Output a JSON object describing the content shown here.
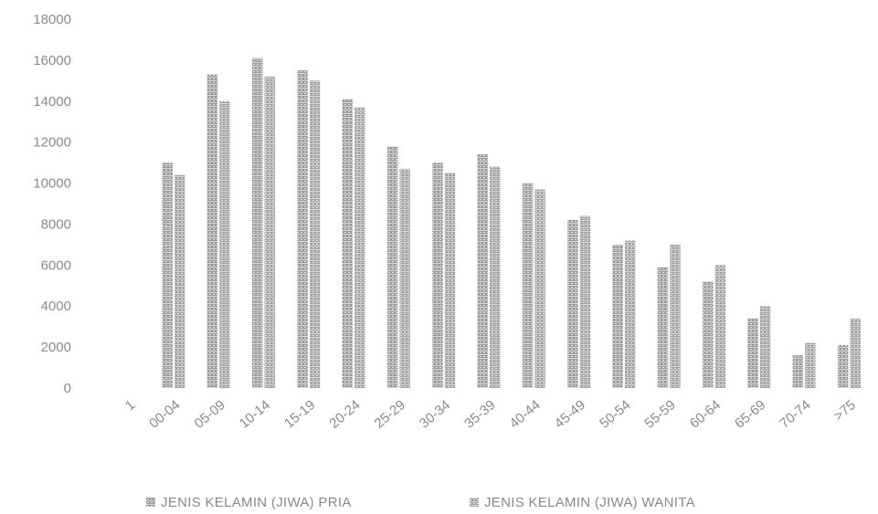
{
  "chart_data": {
    "type": "bar",
    "categories": [
      "1",
      "00-04",
      "05-09",
      "10-14",
      "15-19",
      "20-24",
      "25-29",
      "30-34",
      "35-39",
      "40-44",
      "45-49",
      "50-54",
      "55-59",
      "60-64",
      "65-69",
      "70-74",
      ">75"
    ],
    "series": [
      {
        "name": "JENIS KELAMIN (JIWA) PRIA",
        "values": [
          0,
          11000,
          15300,
          16100,
          15500,
          14100,
          11800,
          11000,
          11400,
          10000,
          8200,
          7000,
          5900,
          5200,
          3400,
          1600,
          2100
        ]
      },
      {
        "name": "JENIS KELAMIN (JIWA) WANITA",
        "values": [
          0,
          10400,
          14000,
          15200,
          15000,
          13700,
          10700,
          10500,
          10800,
          9700,
          8400,
          7200,
          7000,
          6000,
          4000,
          2200,
          3400
        ]
      }
    ],
    "ylim": [
      0,
      18000
    ],
    "yticks": [
      "0",
      "2000",
      "4000",
      "6000",
      "8000",
      "10000",
      "12000",
      "14000",
      "16000",
      "18000"
    ],
    "grid": false,
    "legend_position": "bottom",
    "colors": {
      "series_fill": "#9a9a9a",
      "series_stripe": "#d8d8d8",
      "text": "#8a8a8a"
    }
  }
}
